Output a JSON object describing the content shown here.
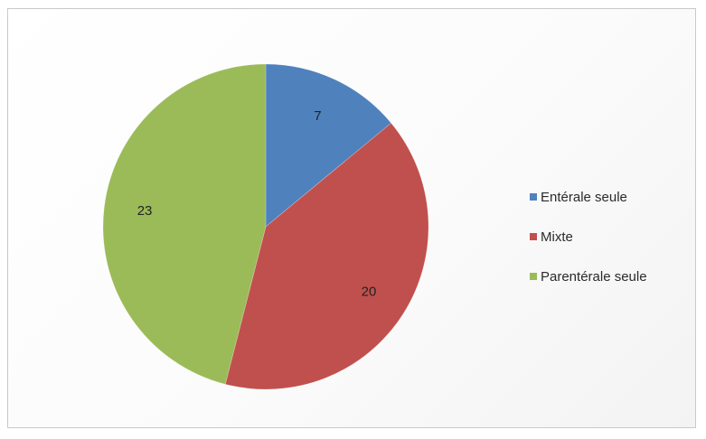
{
  "chart_data": {
    "type": "pie",
    "title": "",
    "categories": [
      "Entérale seule",
      "Mixte",
      "Parentérale seule"
    ],
    "values": [
      7,
      20,
      23
    ],
    "data_labels": [
      "7",
      "20",
      "23"
    ],
    "colors": [
      "#4f81bd",
      "#c0504d",
      "#9bbb59"
    ],
    "legend": {
      "position": "right",
      "entries": [
        "Entérale seule",
        "Mixte",
        "Parentérale seule"
      ]
    }
  }
}
